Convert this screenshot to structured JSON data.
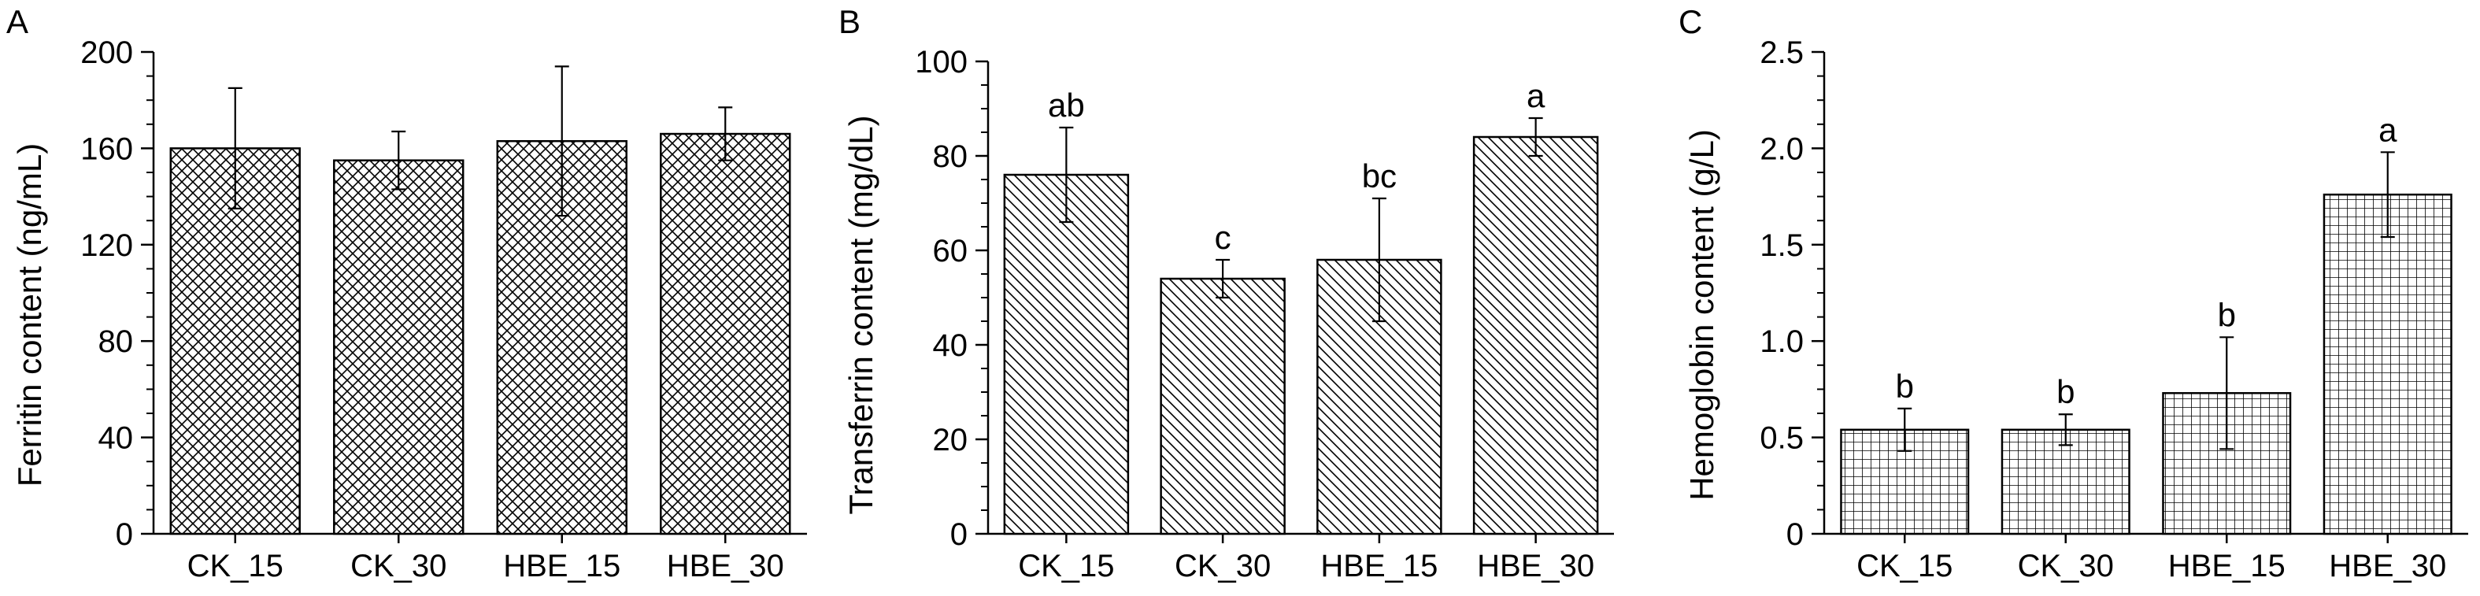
{
  "chart_data": [
    {
      "panel": "A",
      "type": "bar",
      "ylabel": "Ferritin content (ng/mL)",
      "ylim": [
        0,
        200
      ],
      "yticks": [
        0,
        40,
        80,
        120,
        160,
        200
      ],
      "categories": [
        "CK_15",
        "CK_30",
        "HBE_15",
        "HBE_30"
      ],
      "values": [
        160,
        155,
        163,
        166
      ],
      "errors": [
        25,
        12,
        31,
        11
      ],
      "labels": [
        "",
        "",
        "",
        ""
      ],
      "pattern": "crosshatch"
    },
    {
      "panel": "B",
      "type": "bar",
      "ylabel": "Transferrin content (mg/dL)",
      "ylim": [
        0,
        100
      ],
      "yticks": [
        0,
        20,
        40,
        60,
        80,
        100
      ],
      "categories": [
        "CK_15",
        "CK_30",
        "HBE_15",
        "HBE_30"
      ],
      "values": [
        76,
        54,
        58,
        84
      ],
      "errors": [
        10,
        4,
        13,
        4
      ],
      "labels": [
        "ab",
        "c",
        "bc",
        "a"
      ],
      "pattern": "diagonal"
    },
    {
      "panel": "C",
      "type": "bar",
      "ylabel": "Hemoglobin content (g/L)",
      "ylim": [
        0,
        2.5
      ],
      "yticks": [
        "0",
        "0.5",
        "1.0",
        "1.5",
        "2.0",
        "2.5"
      ],
      "categories": [
        "CK_15",
        "CK_30",
        "HBE_15",
        "HBE_30"
      ],
      "values": [
        0.54,
        0.54,
        0.73,
        1.76
      ],
      "errors": [
        0.11,
        0.08,
        0.29,
        0.22
      ],
      "labels": [
        "b",
        "b",
        "b",
        "a"
      ],
      "pattern": "grid"
    }
  ]
}
